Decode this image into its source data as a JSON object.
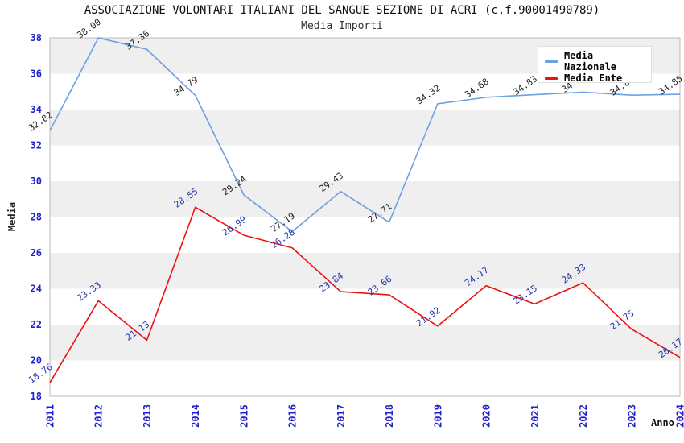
{
  "chart_data": {
    "type": "line",
    "title": "ASSOCIAZIONE VOLONTARI ITALIANI DEL SANGUE SEZIONE DI ACRI (c.f.90001490789)",
    "subtitle": "Media Importi",
    "xlabel": "Anno",
    "ylabel": "Media",
    "x": [
      "2011",
      "2012",
      "2013",
      "2014",
      "2015",
      "2016",
      "2017",
      "2018",
      "2019",
      "2020",
      "2021",
      "2022",
      "2023",
      "2024"
    ],
    "ylim": [
      18,
      38
    ],
    "ytick_step": 2,
    "grid_bands": true,
    "legend_position": "top-right",
    "series": [
      {
        "name": "Media Nazionale",
        "color": "#6da0e0",
        "label_color": "#222222",
        "values": [
          32.82,
          38.0,
          37.36,
          34.79,
          29.24,
          27.19,
          29.43,
          27.71,
          34.32,
          34.68,
          34.83,
          34.97,
          34.8,
          34.85
        ]
      },
      {
        "name": "Media Ente",
        "color": "#ee1111",
        "label_color": "#2233aa",
        "values": [
          18.76,
          23.33,
          21.13,
          28.55,
          26.99,
          26.28,
          23.84,
          23.66,
          21.92,
          24.17,
          23.15,
          24.33,
          21.75,
          20.17
        ]
      }
    ],
    "colors": {
      "tick": "#2222cc",
      "band": "#efefef",
      "border": "#bbbbbb",
      "axis_title": "#222222"
    }
  }
}
